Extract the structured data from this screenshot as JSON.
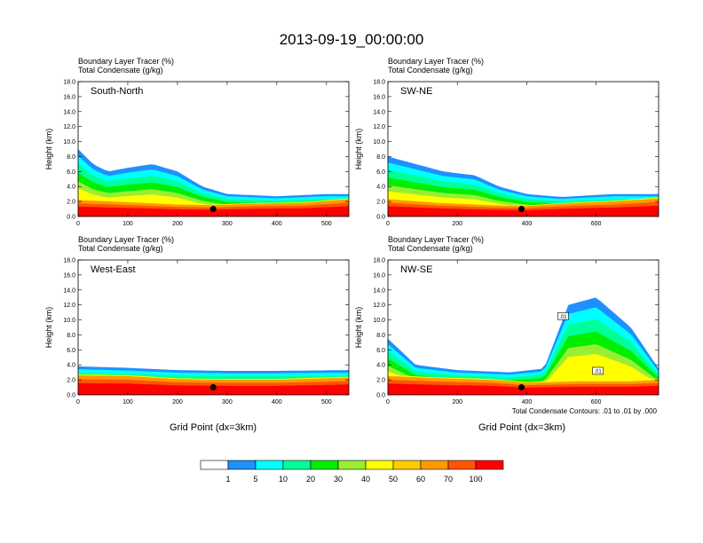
{
  "figure": {
    "main_title": "2013-09-19_00:00:00",
    "xlabel": "Grid Point (dx=3km)",
    "contour_note": "Total Condensate Contours: .01 to .01 by .000",
    "colorbar": {
      "labels": [
        "1",
        "5",
        "10",
        "20",
        "30",
        "40",
        "50",
        "60",
        "70",
        "100"
      ],
      "colors": [
        "#ffffff",
        "#1e90ff",
        "#00ffff",
        "#00ff99",
        "#00ee00",
        "#99ee33",
        "#ffff00",
        "#ffcc00",
        "#ff9900",
        "#ff5500",
        "#ff0000"
      ]
    }
  },
  "chart_data": [
    {
      "type": "heatmap",
      "panel_label": "South-North",
      "title_line1": "Boundary Layer Tracer   (%)",
      "title_line2": "Total Condensate   (g/kg)",
      "ylabel": "Height (km)",
      "xlim": [
        0,
        545
      ],
      "ylim": [
        0,
        18
      ],
      "xticks": [
        0,
        100,
        200,
        300,
        400,
        500
      ],
      "yticks": [
        "0.0",
        "2.0",
        "4.0",
        "6.0",
        "8.0",
        "10.0",
        "12.0",
        "14.0",
        "16.0",
        "18.0"
      ],
      "marker": {
        "x": 272,
        "y": 1.0
      },
      "boundary_layer_top_km": [
        [
          0,
          2.2
        ],
        [
          100,
          1.9
        ],
        [
          200,
          1.6
        ],
        [
          270,
          1.5
        ],
        [
          350,
          1.7
        ],
        [
          450,
          1.8
        ],
        [
          545,
          2.3
        ]
      ],
      "tracer_top_km": [
        [
          0,
          9
        ],
        [
          30,
          7
        ],
        [
          60,
          6
        ],
        [
          100,
          6.5
        ],
        [
          150,
          7
        ],
        [
          200,
          6
        ],
        [
          250,
          4
        ],
        [
          300,
          3
        ],
        [
          400,
          2.7
        ],
        [
          500,
          3
        ],
        [
          545,
          3
        ]
      ],
      "has_xlabel": false
    },
    {
      "type": "heatmap",
      "panel_label": "SW-NE",
      "title_line1": "Boundary Layer Tracer   (%)",
      "title_line2": "Total Condensate   (g/kg)",
      "ylabel": "Height (km)",
      "xlim": [
        0,
        780
      ],
      "ylim": [
        0,
        18
      ],
      "xticks": [
        0,
        200,
        400,
        600
      ],
      "yticks": [
        "0.0",
        "2.0",
        "4.0",
        "6.0",
        "8.0",
        "10.0",
        "12.0",
        "14.0",
        "16.0",
        "18.0"
      ],
      "marker": {
        "x": 385,
        "y": 1.0
      },
      "boundary_layer_top_km": [
        [
          0,
          2.3
        ],
        [
          150,
          1.8
        ],
        [
          300,
          1.5
        ],
        [
          400,
          1.4
        ],
        [
          500,
          1.7
        ],
        [
          650,
          2.0
        ],
        [
          780,
          2.4
        ]
      ],
      "tracer_top_km": [
        [
          0,
          8
        ],
        [
          80,
          7
        ],
        [
          160,
          6
        ],
        [
          250,
          5.5
        ],
        [
          320,
          4
        ],
        [
          400,
          3
        ],
        [
          500,
          2.6
        ],
        [
          650,
          3
        ],
        [
          780,
          3
        ]
      ],
      "has_xlabel": false
    },
    {
      "type": "heatmap",
      "panel_label": "West-East",
      "title_line1": "Boundary Layer Tracer   (%)",
      "title_line2": "Total Condensate   (g/kg)",
      "ylabel": "Height (km)",
      "xlim": [
        0,
        545
      ],
      "ylim": [
        0,
        18
      ],
      "xticks": [
        0,
        100,
        200,
        300,
        400,
        500
      ],
      "yticks": [
        "0.0",
        "2.0",
        "4.0",
        "6.0",
        "8.0",
        "10.0",
        "12.0",
        "14.0",
        "16.0",
        "18.0"
      ],
      "marker": {
        "x": 272,
        "y": 1.0
      },
      "boundary_layer_top_km": [
        [
          0,
          2.6
        ],
        [
          100,
          2.5
        ],
        [
          200,
          2.1
        ],
        [
          300,
          2.0
        ],
        [
          400,
          2.0
        ],
        [
          545,
          2.3
        ]
      ],
      "tracer_top_km": [
        [
          0,
          3.8
        ],
        [
          100,
          3.6
        ],
        [
          200,
          3.3
        ],
        [
          300,
          3.2
        ],
        [
          400,
          3.2
        ],
        [
          545,
          3.3
        ]
      ],
      "has_xlabel": true
    },
    {
      "type": "heatmap",
      "panel_label": "NW-SE",
      "title_line1": "Boundary Layer Tracer   (%)",
      "title_line2": "Total Condensate   (g/kg)",
      "ylabel": "Height (km)",
      "xlim": [
        0,
        780
      ],
      "ylim": [
        0,
        18
      ],
      "xticks": [
        0,
        200,
        400,
        600
      ],
      "yticks": [
        "0.0",
        "2.0",
        "4.0",
        "6.0",
        "8.0",
        "10.0",
        "12.0",
        "14.0",
        "16.0",
        "18.0"
      ],
      "marker": {
        "x": 385,
        "y": 1.0
      },
      "contour_labels": [
        {
          "x": 505,
          "y": 10.5,
          "text": ".01"
        },
        {
          "x": 605,
          "y": 3.2,
          "text": ".01"
        }
      ],
      "boundary_layer_top_km": [
        [
          0,
          2.5
        ],
        [
          150,
          2.2
        ],
        [
          300,
          2.0
        ],
        [
          400,
          1.6
        ],
        [
          550,
          1.8
        ],
        [
          700,
          1.8
        ],
        [
          780,
          2.0
        ]
      ],
      "tracer_top_km": [
        [
          0,
          7.5
        ],
        [
          80,
          4
        ],
        [
          200,
          3.3
        ],
        [
          350,
          3.0
        ],
        [
          450,
          3.5
        ],
        [
          520,
          12
        ],
        [
          600,
          13
        ],
        [
          700,
          9
        ],
        [
          780,
          3.5
        ]
      ],
      "has_xlabel": true
    }
  ]
}
